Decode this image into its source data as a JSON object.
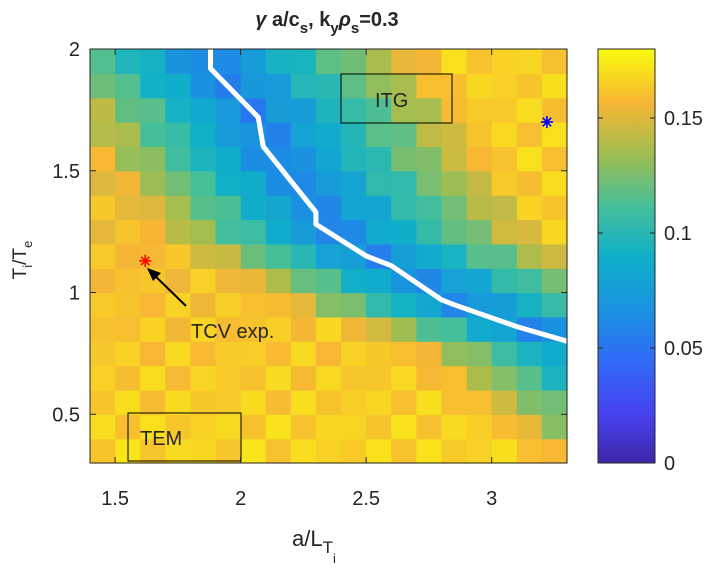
{
  "chart_data": {
    "type": "heatmap",
    "title": {
      "gamma": "γ",
      "main1": " a/c",
      "sub1": "s",
      "main2": ", k",
      "sub2": "y",
      "rho": "ρ",
      "sub3": "s",
      "main3": "=0.3"
    },
    "xlabel": {
      "main": "a/L",
      "sub": "T",
      "subsub": "i"
    },
    "ylabel": {
      "main": "T",
      "sub1": "i",
      "slash": "/T",
      "sub2": "e"
    },
    "xlim": [
      1.4,
      3.3
    ],
    "ylim": [
      0.3,
      2.0
    ],
    "x_ticks": [
      1.5,
      2,
      2.5,
      3
    ],
    "x_tick_labels": [
      "1.5",
      "2",
      "2.5",
      "3"
    ],
    "y_ticks": [
      0.5,
      1,
      1.5,
      2
    ],
    "y_tick_labels": [
      "0.5",
      "1",
      "1.5",
      "2"
    ],
    "colorbar": {
      "range": [
        0,
        0.18
      ],
      "ticks": [
        0,
        0.05,
        0.1,
        0.15
      ],
      "tick_labels": [
        "0",
        "0.05",
        "0.1",
        "0.15"
      ],
      "colormap": "parula"
    },
    "grid": {
      "nx": 19,
      "ny": 17,
      "value_range": [
        0.03,
        0.17
      ]
    },
    "boundary_line": {
      "color": "#ffffff",
      "points": [
        [
          1.88,
          2.0
        ],
        [
          1.88,
          1.92
        ],
        [
          2.07,
          1.72
        ],
        [
          2.09,
          1.6
        ],
        [
          2.3,
          1.33
        ],
        [
          2.3,
          1.28
        ],
        [
          2.5,
          1.15
        ],
        [
          2.6,
          1.11
        ],
        [
          2.8,
          0.97
        ],
        [
          2.85,
          0.95
        ],
        [
          3.1,
          0.86
        ],
        [
          3.3,
          0.8
        ]
      ]
    },
    "region_labels": [
      {
        "text": "ITG",
        "x": 2.65,
        "y": 1.8
      },
      {
        "text": "TEM",
        "x": 1.62,
        "y": 0.44
      }
    ],
    "markers": [
      {
        "name": "tcv-experiment-marker",
        "x": 1.62,
        "y": 1.13,
        "color": "#ff0000",
        "symbol": "*"
      },
      {
        "name": "itg-point-marker",
        "x": 3.22,
        "y": 1.7,
        "color": "#0000ff",
        "symbol": "*"
      }
    ],
    "annotation": {
      "text": "TCV exp.",
      "arrow_to": [
        1.62,
        1.11
      ],
      "arrow_from": [
        1.78,
        0.94
      ],
      "label_at": [
        1.78,
        0.91
      ]
    }
  }
}
